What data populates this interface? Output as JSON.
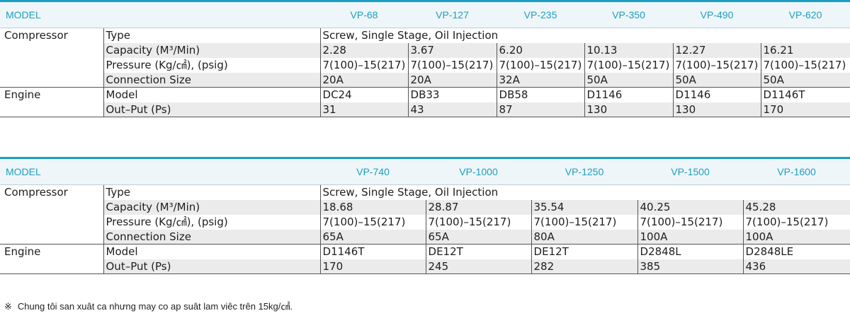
{
  "model_label": "MODEL",
  "sections": {
    "compressor": "Compressor",
    "engine": "Engine"
  },
  "rows": {
    "type": "Type",
    "capacity": "Capacity (M³/Min)",
    "pressure": "Pressure (Kg/㎠), (psig)",
    "connection": "Connection Size",
    "engine_model": "Model",
    "output": "Out–Put (Ps)"
  },
  "type_value": "Screw, Single Stage, Oil Injection",
  "table1": {
    "models": [
      "VP-68",
      "VP-127",
      "VP-235",
      "VP-350",
      "VP-490",
      "VP-620"
    ],
    "capacity": [
      "2.28",
      "3.67",
      "6.20",
      "10.13",
      "12.27",
      "16.21"
    ],
    "pressure": [
      "7(100)–15(217)",
      "7(100)–15(217)",
      "7(100)–15(217)",
      "7(100)–15(217)",
      "7(100)–15(217)",
      "7(100)–15(217)"
    ],
    "connection": [
      "20A",
      "20A",
      "32A",
      "50A",
      "50A",
      "50A"
    ],
    "engine_model": [
      "DC24",
      "DB33",
      "DB58",
      "D1146",
      "D1146",
      "D1146T"
    ],
    "output": [
      "31",
      "43",
      "87",
      "130",
      "130",
      "170"
    ]
  },
  "table2": {
    "models": [
      "VP-740",
      "VP-1000",
      "VP-1250",
      "VP-1500",
      "VP-1600"
    ],
    "capacity": [
      "18.68",
      "28.87",
      "35.54",
      "40.25",
      "45.28"
    ],
    "pressure": [
      "7(100)–15(217)",
      "7(100)–15(217)",
      "7(100)–15(217)",
      "7(100)–15(217)",
      "7(100)–15(217)"
    ],
    "connection": [
      "65A",
      "65A",
      "80A",
      "100A",
      "100A"
    ],
    "engine_model": [
      "D1146T",
      "DE12T",
      "DE12T",
      "D2848L",
      "D2848LE"
    ],
    "output": [
      "170",
      "245",
      "282",
      "385",
      "436"
    ]
  },
  "note": {
    "mark": "※",
    "text": "Chung tôi san xuât ca nhưng may co ap suât lam viêc trên 15kg/㎠."
  }
}
